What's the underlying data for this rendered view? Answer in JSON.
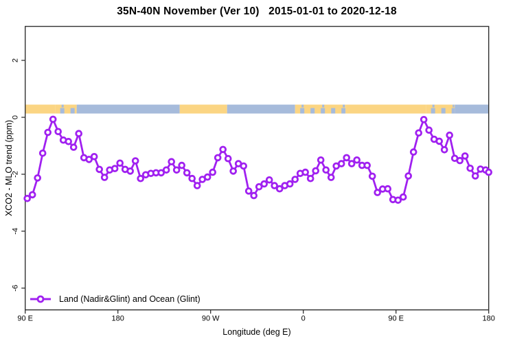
{
  "header": {
    "title": "35N-40N November (Ver 10)   2015-01-01 to 2020-12-18"
  },
  "chart_data": {
    "type": "line",
    "title": "35N-40N November (Ver 10)   2015-01-01 to 2020-12-18",
    "xlabel": "Longitude (deg E)",
    "ylabel": "XCO2 - MLO trend (ppm)",
    "x_axis_note": "axis spans 450 degrees of longitude wrapping eastward: 90E to 180 to 90W to 0 to 90E to 180; x values below are degrees east of the left edge (90E)",
    "x_ticks": [
      {
        "deg": 0,
        "label": "90 E"
      },
      {
        "deg": 90,
        "label": "180"
      },
      {
        "deg": 180,
        "label": "90 W"
      },
      {
        "deg": 270,
        "label": "0"
      },
      {
        "deg": 360,
        "label": "90 E"
      },
      {
        "deg": 450,
        "label": "180"
      }
    ],
    "y_ticks": [
      {
        "v": 2,
        "label": "2"
      },
      {
        "v": 0,
        "label": "0"
      },
      {
        "v": -2,
        "label": "-2"
      },
      {
        "v": -4,
        "label": "-4"
      },
      {
        "v": -6,
        "label": "-6"
      }
    ],
    "ylim": [
      -6.8,
      3.2
    ],
    "grid": false,
    "axis_color": "#303030",
    "legend": {
      "position": "bottom-left",
      "entries": [
        "Land (Nadir&Glint) and Ocean (Glint)"
      ]
    },
    "series": [
      {
        "name": "Land (Nadir&Glint) and Ocean (Glint)",
        "color": "#A020F0",
        "marker": "open-circle",
        "points": [
          [
            2,
            -2.85
          ],
          [
            7,
            -2.72
          ],
          [
            12,
            -2.13
          ],
          [
            17,
            -1.26
          ],
          [
            22,
            -0.53
          ],
          [
            27,
            -0.07
          ],
          [
            32,
            -0.5
          ],
          [
            37,
            -0.8
          ],
          [
            42,
            -0.85
          ],
          [
            47,
            -1.05
          ],
          [
            52,
            -0.57
          ],
          [
            57,
            -1.42
          ],
          [
            62,
            -1.48
          ],
          [
            67,
            -1.38
          ],
          [
            72,
            -1.83
          ],
          [
            77,
            -2.11
          ],
          [
            82,
            -1.85
          ],
          [
            87,
            -1.8
          ],
          [
            92,
            -1.61
          ],
          [
            97,
            -1.83
          ],
          [
            102,
            -1.89
          ],
          [
            107,
            -1.53
          ],
          [
            112,
            -2.15
          ],
          [
            117,
            -2.02
          ],
          [
            122,
            -1.97
          ],
          [
            127,
            -1.95
          ],
          [
            132,
            -1.95
          ],
          [
            137,
            -1.85
          ],
          [
            142,
            -1.56
          ],
          [
            147,
            -1.85
          ],
          [
            152,
            -1.69
          ],
          [
            157,
            -1.95
          ],
          [
            162,
            -2.15
          ],
          [
            167,
            -2.4
          ],
          [
            172,
            -2.18
          ],
          [
            177,
            -2.1
          ],
          [
            182,
            -1.93
          ],
          [
            187,
            -1.42
          ],
          [
            192,
            -1.13
          ],
          [
            197,
            -1.45
          ],
          [
            202,
            -1.89
          ],
          [
            207,
            -1.63
          ],
          [
            212,
            -1.71
          ],
          [
            217,
            -2.59
          ],
          [
            222,
            -2.75
          ],
          [
            227,
            -2.44
          ],
          [
            232,
            -2.34
          ],
          [
            237,
            -2.2
          ],
          [
            242,
            -2.4
          ],
          [
            247,
            -2.51
          ],
          [
            252,
            -2.4
          ],
          [
            257,
            -2.34
          ],
          [
            262,
            -2.18
          ],
          [
            267,
            -1.97
          ],
          [
            272,
            -1.93
          ],
          [
            277,
            -2.15
          ],
          [
            282,
            -1.88
          ],
          [
            287,
            -1.5
          ],
          [
            292,
            -1.85
          ],
          [
            297,
            -2.11
          ],
          [
            302,
            -1.71
          ],
          [
            307,
            -1.63
          ],
          [
            312,
            -1.42
          ],
          [
            317,
            -1.63
          ],
          [
            322,
            -1.5
          ],
          [
            327,
            -1.69
          ],
          [
            332,
            -1.69
          ],
          [
            337,
            -2.07
          ],
          [
            342,
            -2.64
          ],
          [
            347,
            -2.52
          ],
          [
            352,
            -2.51
          ],
          [
            357,
            -2.89
          ],
          [
            362,
            -2.91
          ],
          [
            367,
            -2.8
          ],
          [
            372,
            -2.06
          ],
          [
            377,
            -1.22
          ],
          [
            382,
            -0.55
          ],
          [
            387,
            -0.08
          ],
          [
            392,
            -0.45
          ],
          [
            397,
            -0.77
          ],
          [
            402,
            -0.84
          ],
          [
            407,
            -1.14
          ],
          [
            412,
            -0.63
          ],
          [
            417,
            -1.44
          ],
          [
            422,
            -1.52
          ],
          [
            427,
            -1.36
          ],
          [
            432,
            -1.79
          ],
          [
            437,
            -2.06
          ],
          [
            442,
            -1.82
          ],
          [
            447,
            -1.85
          ],
          [
            450,
            -1.93
          ]
        ]
      }
    ],
    "surface_strip": {
      "description": "land/ocean indicator band drawn just above the 0 ppm line",
      "y_range_ppm": [
        0.15,
        0.45
      ],
      "land_color": "#FBD583",
      "ocean_color": "#A6BBDB",
      "segments": [
        {
          "from": 0,
          "to": 29,
          "type": "land"
        },
        {
          "from": 29,
          "to": 50,
          "type": "mixed"
        },
        {
          "from": 50,
          "to": 150,
          "type": "ocean"
        },
        {
          "from": 150,
          "to": 196,
          "type": "land"
        },
        {
          "from": 196,
          "to": 262,
          "type": "ocean"
        },
        {
          "from": 262,
          "to": 311,
          "type": "mixed"
        },
        {
          "from": 311,
          "to": 389,
          "type": "land"
        },
        {
          "from": 389,
          "to": 417,
          "type": "mixed"
        },
        {
          "from": 417,
          "to": 450,
          "type": "ocean"
        }
      ]
    }
  }
}
